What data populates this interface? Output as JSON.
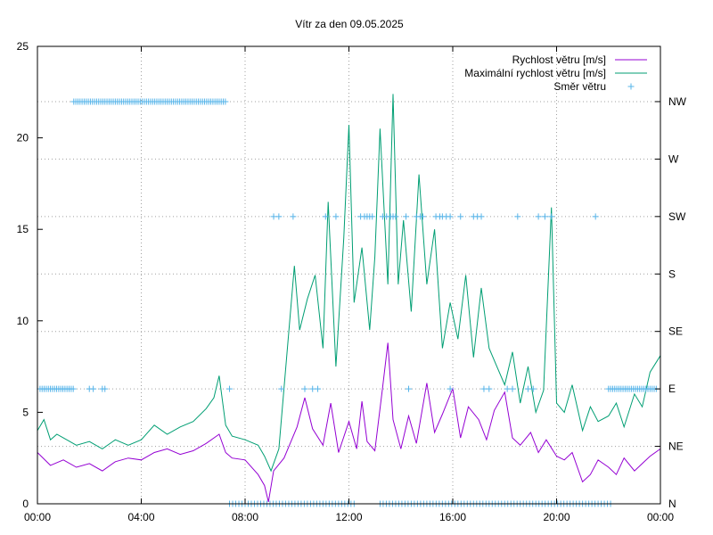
{
  "chart_data": {
    "type": "line",
    "title": "Vítr za den 09.05.2025",
    "xlabel": "",
    "ylabel": "",
    "x_unit": "hours",
    "xlim": [
      0,
      24
    ],
    "ylim": [
      0,
      25
    ],
    "grid": true,
    "legend_placement": "top-right",
    "x_ticks": [
      {
        "value": 0,
        "label": "00:00"
      },
      {
        "value": 4,
        "label": "04:00"
      },
      {
        "value": 8,
        "label": "08:00"
      },
      {
        "value": 12,
        "label": "12:00"
      },
      {
        "value": 16,
        "label": "16:00"
      },
      {
        "value": 20,
        "label": "20:00"
      },
      {
        "value": 24,
        "label": "00:00"
      }
    ],
    "y_ticks": [
      {
        "value": 0,
        "label": "0"
      },
      {
        "value": 5,
        "label": "5"
      },
      {
        "value": 10,
        "label": "10"
      },
      {
        "value": 15,
        "label": "15"
      },
      {
        "value": 20,
        "label": "20"
      },
      {
        "value": 25,
        "label": "25"
      }
    ],
    "y2_ticks": [
      {
        "value": 0,
        "label": "N"
      },
      {
        "value": 3.14,
        "label": "NE"
      },
      {
        "value": 6.28,
        "label": "E"
      },
      {
        "value": 9.42,
        "label": "SE"
      },
      {
        "value": 12.56,
        "label": "S"
      },
      {
        "value": 15.7,
        "label": "SW"
      },
      {
        "value": 18.84,
        "label": "W"
      },
      {
        "value": 21.98,
        "label": "NW"
      }
    ],
    "series": [
      {
        "name": "Rychlost větru [m/s]",
        "style": "line",
        "color": "#9400d3",
        "points": [
          [
            0,
            2.8
          ],
          [
            0.5,
            2.1
          ],
          [
            1,
            2.4
          ],
          [
            1.5,
            2.0
          ],
          [
            2,
            2.2
          ],
          [
            2.5,
            1.8
          ],
          [
            3,
            2.3
          ],
          [
            3.5,
            2.5
          ],
          [
            4,
            2.4
          ],
          [
            4.5,
            2.8
          ],
          [
            5,
            3.0
          ],
          [
            5.5,
            2.7
          ],
          [
            6,
            2.9
          ],
          [
            6.5,
            3.3
          ],
          [
            7,
            3.8
          ],
          [
            7.25,
            2.8
          ],
          [
            7.5,
            2.5
          ],
          [
            8,
            2.4
          ],
          [
            8.5,
            1.6
          ],
          [
            8.75,
            1.0
          ],
          [
            8.9,
            0.1
          ],
          [
            9.1,
            1.8
          ],
          [
            9.5,
            2.5
          ],
          [
            10,
            4.2
          ],
          [
            10.3,
            5.8
          ],
          [
            10.6,
            4.1
          ],
          [
            11,
            3.2
          ],
          [
            11.3,
            5.5
          ],
          [
            11.6,
            2.8
          ],
          [
            12,
            4.5
          ],
          [
            12.3,
            3.0
          ],
          [
            12.5,
            5.6
          ],
          [
            12.7,
            3.4
          ],
          [
            13,
            2.9
          ],
          [
            13.3,
            6.4
          ],
          [
            13.5,
            8.8
          ],
          [
            13.7,
            4.6
          ],
          [
            14,
            3.0
          ],
          [
            14.3,
            4.8
          ],
          [
            14.6,
            3.3
          ],
          [
            15,
            6.6
          ],
          [
            15.3,
            3.9
          ],
          [
            15.6,
            4.9
          ],
          [
            16,
            6.3
          ],
          [
            16.3,
            3.6
          ],
          [
            16.6,
            5.3
          ],
          [
            17,
            4.6
          ],
          [
            17.3,
            3.5
          ],
          [
            17.6,
            5.1
          ],
          [
            18,
            6.1
          ],
          [
            18.3,
            3.6
          ],
          [
            18.6,
            3.2
          ],
          [
            19,
            3.9
          ],
          [
            19.3,
            2.8
          ],
          [
            19.6,
            3.5
          ],
          [
            20,
            2.6
          ],
          [
            20.3,
            2.4
          ],
          [
            20.6,
            2.8
          ],
          [
            21,
            1.2
          ],
          [
            21.3,
            1.6
          ],
          [
            21.6,
            2.4
          ],
          [
            22,
            2.0
          ],
          [
            22.3,
            1.6
          ],
          [
            22.6,
            2.5
          ],
          [
            23,
            1.8
          ],
          [
            23.3,
            2.2
          ],
          [
            23.6,
            2.6
          ],
          [
            24,
            3.0
          ]
        ]
      },
      {
        "name": "Maximální rychlost větru [m/s]",
        "style": "line",
        "color": "#009e73",
        "points": [
          [
            0,
            4.0
          ],
          [
            0.25,
            4.6
          ],
          [
            0.5,
            3.5
          ],
          [
            0.75,
            3.8
          ],
          [
            1,
            3.6
          ],
          [
            1.5,
            3.2
          ],
          [
            2,
            3.4
          ],
          [
            2.5,
            3.0
          ],
          [
            3,
            3.5
          ],
          [
            3.5,
            3.2
          ],
          [
            4,
            3.5
          ],
          [
            4.5,
            4.3
          ],
          [
            5,
            3.8
          ],
          [
            5.5,
            4.2
          ],
          [
            6,
            4.5
          ],
          [
            6.5,
            5.2
          ],
          [
            6.8,
            5.8
          ],
          [
            7,
            7.0
          ],
          [
            7.25,
            4.3
          ],
          [
            7.5,
            3.7
          ],
          [
            8,
            3.5
          ],
          [
            8.5,
            3.2
          ],
          [
            8.75,
            2.6
          ],
          [
            9,
            1.8
          ],
          [
            9.3,
            3.0
          ],
          [
            9.6,
            8.0
          ],
          [
            9.9,
            13.0
          ],
          [
            10.1,
            9.5
          ],
          [
            10.4,
            11.2
          ],
          [
            10.7,
            12.5
          ],
          [
            11,
            8.5
          ],
          [
            11.2,
            16.5
          ],
          [
            11.5,
            7.5
          ],
          [
            11.8,
            14.5
          ],
          [
            12,
            20.7
          ],
          [
            12.2,
            11.0
          ],
          [
            12.5,
            14.0
          ],
          [
            12.8,
            9.5
          ],
          [
            13,
            13.5
          ],
          [
            13.2,
            20.5
          ],
          [
            13.5,
            12.0
          ],
          [
            13.7,
            22.4
          ],
          [
            13.9,
            12.0
          ],
          [
            14.1,
            15.5
          ],
          [
            14.4,
            10.5
          ],
          [
            14.7,
            18.0
          ],
          [
            15,
            12.0
          ],
          [
            15.3,
            15.0
          ],
          [
            15.6,
            8.5
          ],
          [
            15.9,
            11.0
          ],
          [
            16.2,
            9.0
          ],
          [
            16.5,
            12.5
          ],
          [
            16.8,
            8.0
          ],
          [
            17.1,
            11.8
          ],
          [
            17.4,
            8.5
          ],
          [
            17.7,
            7.5
          ],
          [
            18,
            6.5
          ],
          [
            18.3,
            8.3
          ],
          [
            18.6,
            5.5
          ],
          [
            18.9,
            7.5
          ],
          [
            19.2,
            5.0
          ],
          [
            19.5,
            6.2
          ],
          [
            19.8,
            16.2
          ],
          [
            20,
            5.5
          ],
          [
            20.3,
            5.0
          ],
          [
            20.6,
            6.5
          ],
          [
            21,
            4.0
          ],
          [
            21.3,
            5.3
          ],
          [
            21.6,
            4.5
          ],
          [
            22,
            4.8
          ],
          [
            22.3,
            5.5
          ],
          [
            22.6,
            4.2
          ],
          [
            23,
            6.0
          ],
          [
            23.3,
            5.3
          ],
          [
            23.6,
            7.2
          ],
          [
            24,
            8.1
          ]
        ]
      },
      {
        "name": "Směr větru",
        "style": "points",
        "color": "#56b4e9",
        "x_runs": [
          {
            "y": 6.28,
            "from": 0.1,
            "to": 1.4,
            "step": 0.08
          },
          {
            "y": 6.28,
            "x": [
              2.0,
              2.15,
              2.5,
              2.6,
              7.4,
              9.4,
              10.3,
              10.6,
              10.8,
              14.3,
              15.9,
              17.2,
              17.4,
              18.1,
              18.3,
              18.9,
              19.1
            ]
          },
          {
            "y": 6.28,
            "from": 22.0,
            "to": 23.9,
            "step": 0.08
          },
          {
            "y": 21.98,
            "from": 1.4,
            "to": 7.25,
            "step": 0.08
          },
          {
            "y": 15.7,
            "x": [
              9.1,
              9.3,
              9.85,
              11.1,
              11.5,
              12.45,
              12.6,
              12.7,
              12.8,
              12.9,
              13.3,
              13.45,
              13.6,
              13.7,
              13.8,
              14.2,
              14.6,
              14.75,
              14.85,
              15.35,
              15.5,
              15.6,
              15.75,
              15.9,
              16.3,
              16.8,
              16.95,
              17.1,
              18.5,
              19.3,
              19.55,
              19.8,
              21.5
            ]
          },
          {
            "y": 0,
            "from": 7.4,
            "to": 12.3,
            "step": 0.12
          },
          {
            "y": 0,
            "from": 13.2,
            "to": 22.1,
            "step": 0.12
          }
        ]
      }
    ]
  }
}
